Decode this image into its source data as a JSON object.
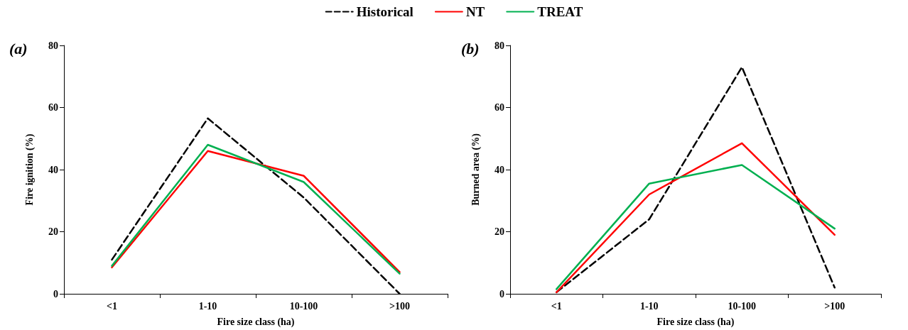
{
  "chart_data": [
    {
      "type": "line",
      "title": "(a)",
      "xlabel": "Fire size class (ha)",
      "ylabel": "Fire ignition (%)",
      "categories": [
        "<1",
        "1-10",
        "10-100",
        ">100"
      ],
      "ylim": [
        0,
        80
      ],
      "yticks": [
        0,
        20,
        40,
        60,
        80
      ],
      "grid": false,
      "legend": "top",
      "marker": "none",
      "series": [
        {
          "name": "Historical",
          "color": "#000000",
          "line_style": "dashed",
          "values": [
            11,
            56.5,
            31,
            0
          ]
        },
        {
          "name": "NT",
          "color": "#ff0000",
          "line_style": "solid",
          "values": [
            8.5,
            46,
            38,
            7
          ]
        },
        {
          "name": "TREAT",
          "color": "#00b050",
          "line_style": "solid",
          "values": [
            9,
            48,
            36,
            6.5
          ]
        }
      ]
    },
    {
      "type": "line",
      "title": "(b)",
      "xlabel": "Fire size class (ha)",
      "ylabel": "Burned area (%)",
      "categories": [
        "<1",
        "1-10",
        "10-100",
        ">100"
      ],
      "ylim": [
        0,
        80
      ],
      "yticks": [
        0,
        20,
        40,
        60,
        80
      ],
      "grid": false,
      "legend": false,
      "marker": "none",
      "series": [
        {
          "color": "#000000",
          "line_style": "dashed",
          "values": [
            0.5,
            24,
            73,
            2
          ]
        },
        {
          "color": "#ff0000",
          "line_style": "solid",
          "values": [
            0.5,
            32,
            48.5,
            19
          ]
        },
        {
          "color": "#00b050",
          "line_style": "solid",
          "values": [
            1.5,
            35.5,
            41.5,
            21
          ]
        }
      ]
    }
  ]
}
